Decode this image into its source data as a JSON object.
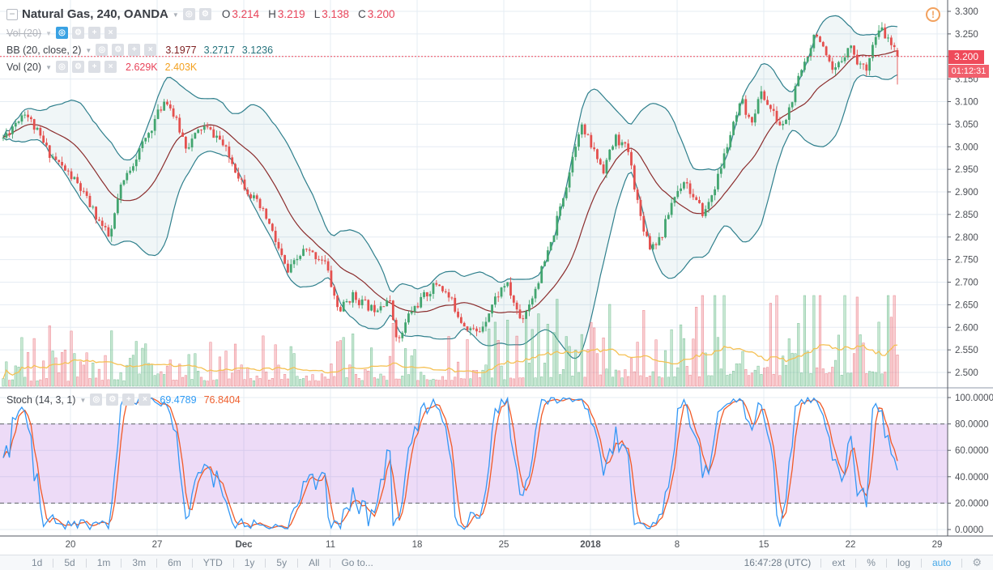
{
  "header": {
    "title": "Natural Gas, 240, OANDA",
    "ohlc": [
      {
        "label": "O",
        "value": "3.214"
      },
      {
        "label": "H",
        "value": "3.219"
      },
      {
        "label": "L",
        "value": "3.138"
      },
      {
        "label": "C",
        "value": "3.200"
      }
    ],
    "indicators": [
      {
        "name": "Vol (20)",
        "hidden": true
      },
      {
        "name": "BB (20, close, 2)",
        "values": [
          "3.1977",
          "3.2717",
          "3.1236"
        ]
      },
      {
        "name": "Vol (20)",
        "values": [
          "2.629K",
          "2.403K"
        ]
      }
    ]
  },
  "stoch_legend": {
    "name": "Stoch (14, 3, 1)",
    "k_value": "69.4789",
    "d_value": "76.8404"
  },
  "price_axis": {
    "ticks": [
      "3.300",
      "3.250",
      "3.200",
      "3.150",
      "3.100",
      "3.050",
      "3.000",
      "2.950",
      "2.900",
      "2.850",
      "2.800",
      "2.750",
      "2.700",
      "2.650",
      "2.600",
      "2.550",
      "2.500"
    ],
    "last_price": "3.200",
    "countdown": "01:12:31"
  },
  "stoch_axis": {
    "ticks": [
      "100.0000",
      "80.0000",
      "60.0000",
      "40.0000",
      "20.0000",
      "0.0000"
    ]
  },
  "x_axis": {
    "labels": [
      {
        "text": "20"
      },
      {
        "text": "27"
      },
      {
        "text": "Dec",
        "bold": true
      },
      {
        "text": "11"
      },
      {
        "text": "18"
      },
      {
        "text": "25"
      },
      {
        "text": "2018",
        "bold": true
      },
      {
        "text": "8"
      },
      {
        "text": "15"
      },
      {
        "text": "22"
      },
      {
        "text": "29"
      }
    ]
  },
  "toolbar": {
    "ranges": [
      "1d",
      "5d",
      "1m",
      "3m",
      "6m",
      "YTD",
      "1y",
      "5y",
      "All",
      "Go to..."
    ],
    "clock": "16:47:28 (UTC)",
    "ext": "ext",
    "percent": "%",
    "log": "log",
    "auto": "auto"
  },
  "warning_badge": "!",
  "chart_data": {
    "type": "candlestick",
    "symbol": "Natural Gas",
    "interval": "240",
    "exchange": "OANDA",
    "bars": 290,
    "seed": 11,
    "price_range": [
      2.5,
      3.3
    ],
    "last_candle": {
      "o": 3.214,
      "h": 3.219,
      "l": 3.138,
      "c": 3.2
    },
    "indicators": {
      "bb": {
        "length": 20,
        "source": "close",
        "mult": 2,
        "basis": 3.1977,
        "upper": 3.2717,
        "lower": 3.1236
      },
      "volume_ma": {
        "length": 20,
        "last_volume": "2.629K",
        "ma_value": "2.403K"
      },
      "stoch": {
        "length": 14,
        "smooth_k": 3,
        "smooth_d": 1,
        "k": 69.4789,
        "d": 76.8404,
        "upper_band": 80,
        "lower_band": 20
      }
    },
    "price_path": [
      [
        0,
        3.02
      ],
      [
        0.024,
        3.08
      ],
      [
        0.05,
        2.99
      ],
      [
        0.082,
        2.92
      ],
      [
        0.1,
        2.86
      ],
      [
        0.119,
        2.795
      ],
      [
        0.13,
        2.9
      ],
      [
        0.141,
        2.95
      ],
      [
        0.16,
        3.02
      ],
      [
        0.182,
        3.11
      ],
      [
        0.205,
        3.0
      ],
      [
        0.223,
        3.045
      ],
      [
        0.241,
        3.02
      ],
      [
        0.268,
        2.92
      ],
      [
        0.295,
        2.84
      ],
      [
        0.318,
        2.72
      ],
      [
        0.336,
        2.77
      ],
      [
        0.359,
        2.75
      ],
      [
        0.375,
        2.635
      ],
      [
        0.39,
        2.67
      ],
      [
        0.413,
        2.64
      ],
      [
        0.431,
        2.665
      ],
      [
        0.442,
        2.565
      ],
      [
        0.454,
        2.63
      ],
      [
        0.467,
        2.66
      ],
      [
        0.486,
        2.7
      ],
      [
        0.502,
        2.655
      ],
      [
        0.514,
        2.61
      ],
      [
        0.531,
        2.585
      ],
      [
        0.549,
        2.66
      ],
      [
        0.562,
        2.7
      ],
      [
        0.579,
        2.615
      ],
      [
        0.592,
        2.67
      ],
      [
        0.612,
        2.78
      ],
      [
        0.63,
        2.92
      ],
      [
        0.645,
        3.05
      ],
      [
        0.658,
        3.0
      ],
      [
        0.671,
        2.95
      ],
      [
        0.685,
        3.02
      ],
      [
        0.699,
        2.99
      ],
      [
        0.712,
        2.85
      ],
      [
        0.723,
        2.78
      ],
      [
        0.736,
        2.8
      ],
      [
        0.748,
        2.88
      ],
      [
        0.762,
        2.93
      ],
      [
        0.773,
        2.88
      ],
      [
        0.784,
        2.85
      ],
      [
        0.799,
        2.93
      ],
      [
        0.812,
        3.02
      ],
      [
        0.826,
        3.1
      ],
      [
        0.835,
        3.05
      ],
      [
        0.848,
        3.12
      ],
      [
        0.859,
        3.08
      ],
      [
        0.871,
        3.04
      ],
      [
        0.882,
        3.1
      ],
      [
        0.891,
        3.16
      ],
      [
        0.902,
        3.22
      ],
      [
        0.909,
        3.26
      ],
      [
        0.919,
        3.2
      ],
      [
        0.928,
        3.16
      ],
      [
        0.937,
        3.19
      ],
      [
        0.946,
        3.23
      ],
      [
        0.955,
        3.19
      ],
      [
        0.964,
        3.17
      ],
      [
        0.973,
        3.23
      ],
      [
        0.982,
        3.26
      ],
      [
        0.991,
        3.23
      ],
      [
        1,
        3.2
      ]
    ],
    "colors": {
      "up": "#42a56f",
      "down": "#e4504e",
      "bb_line": "#2e7f8c",
      "bb_fill": "rgba(46,127,140,0.07)",
      "bb_basis": "#8b2c2c",
      "vol_up": "rgba(110,195,140,0.38)",
      "vol_up_b": "rgba(90,175,125,0.75)",
      "vol_down": "rgba(235,110,120,0.32)",
      "vol_down_b": "rgba(228,90,100,0.7)",
      "vol_ma": "#f5c154",
      "stoch_k": "#3397f5",
      "stoch_d": "#f05a28",
      "stoch_band": "rgba(166,77,214,0.2)",
      "band_dash": "#5f6268",
      "grid": "#e5ecf3",
      "last_price": "#ef4a5a",
      "axis_line": "#555a63",
      "axis_text": "#4c4f55"
    }
  }
}
